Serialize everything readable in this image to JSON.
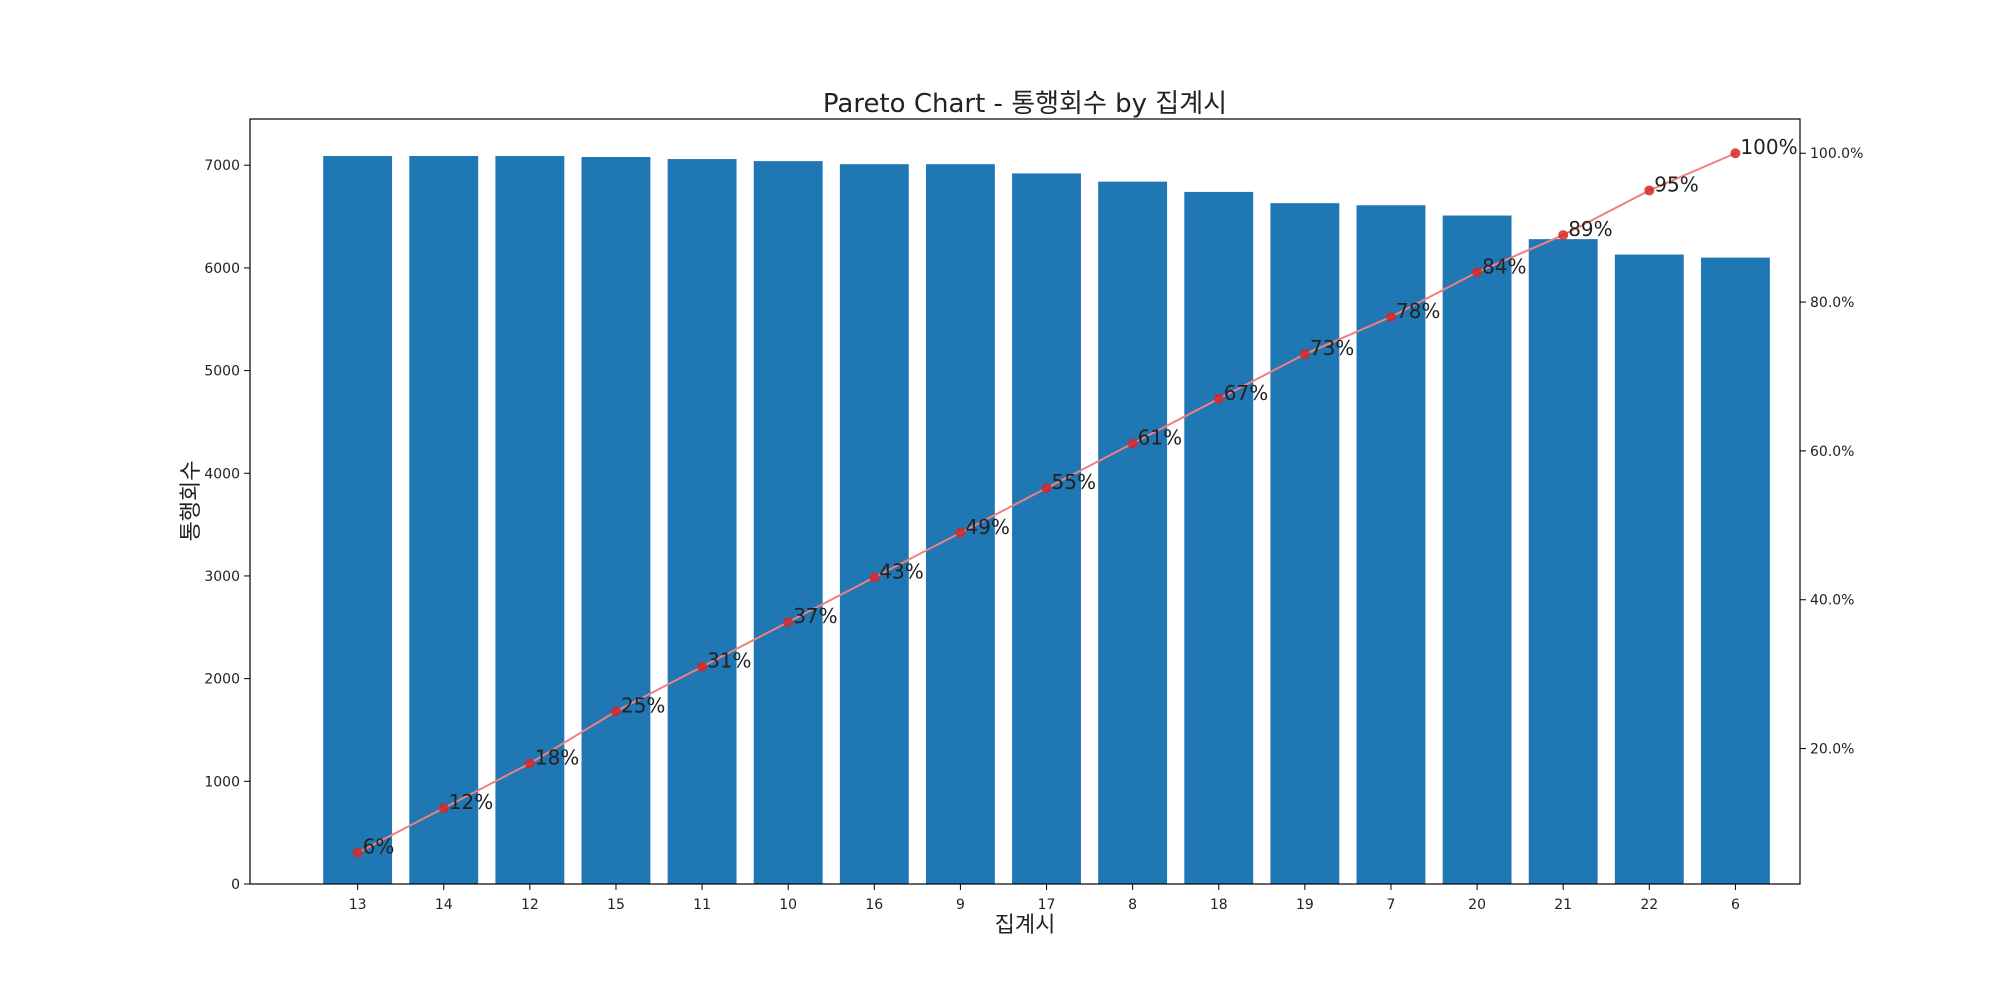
{
  "chart_data": {
    "type": "bar",
    "title": "Pareto Chart -  통행회수 by 집계시",
    "xlabel": "집계시",
    "ylabel": "통행회수",
    "categories": [
      "13",
      "14",
      "12",
      "15",
      "11",
      "10",
      "16",
      "9",
      "17",
      "8",
      "18",
      "19",
      "7",
      "20",
      "21",
      "22",
      "6"
    ],
    "values": [
      7090,
      7090,
      7090,
      7080,
      7060,
      7040,
      7010,
      7010,
      6920,
      6840,
      6740,
      6630,
      6610,
      6510,
      6280,
      6130,
      6100
    ],
    "ylim": [
      0,
      7450
    ],
    "yticks": [
      0,
      1000,
      2000,
      3000,
      4000,
      5000,
      6000,
      7000
    ],
    "bar_color": "#1f77b4",
    "secondary_axis": {
      "type": "line",
      "values": [
        6,
        12,
        18,
        25,
        31,
        37,
        43,
        49,
        55,
        61,
        67,
        73,
        78,
        84,
        89,
        95,
        100
      ],
      "labels": [
        "6%",
        "12%",
        "18%",
        "25%",
        "31%",
        "37%",
        "43%",
        "49%",
        "55%",
        "61%",
        "67%",
        "73%",
        "78%",
        "84%",
        "89%",
        "95%",
        "100%"
      ],
      "ylim": [
        1.8,
        104.6
      ],
      "yticks": [
        20,
        40,
        60,
        80,
        100
      ],
      "ytick_labels": [
        "20.0%",
        "40.0%",
        "60.0%",
        "80.0%",
        "100.0%"
      ],
      "line_color": "#f08080",
      "marker_color": "#d62728"
    },
    "grid": false,
    "legend": "none"
  }
}
